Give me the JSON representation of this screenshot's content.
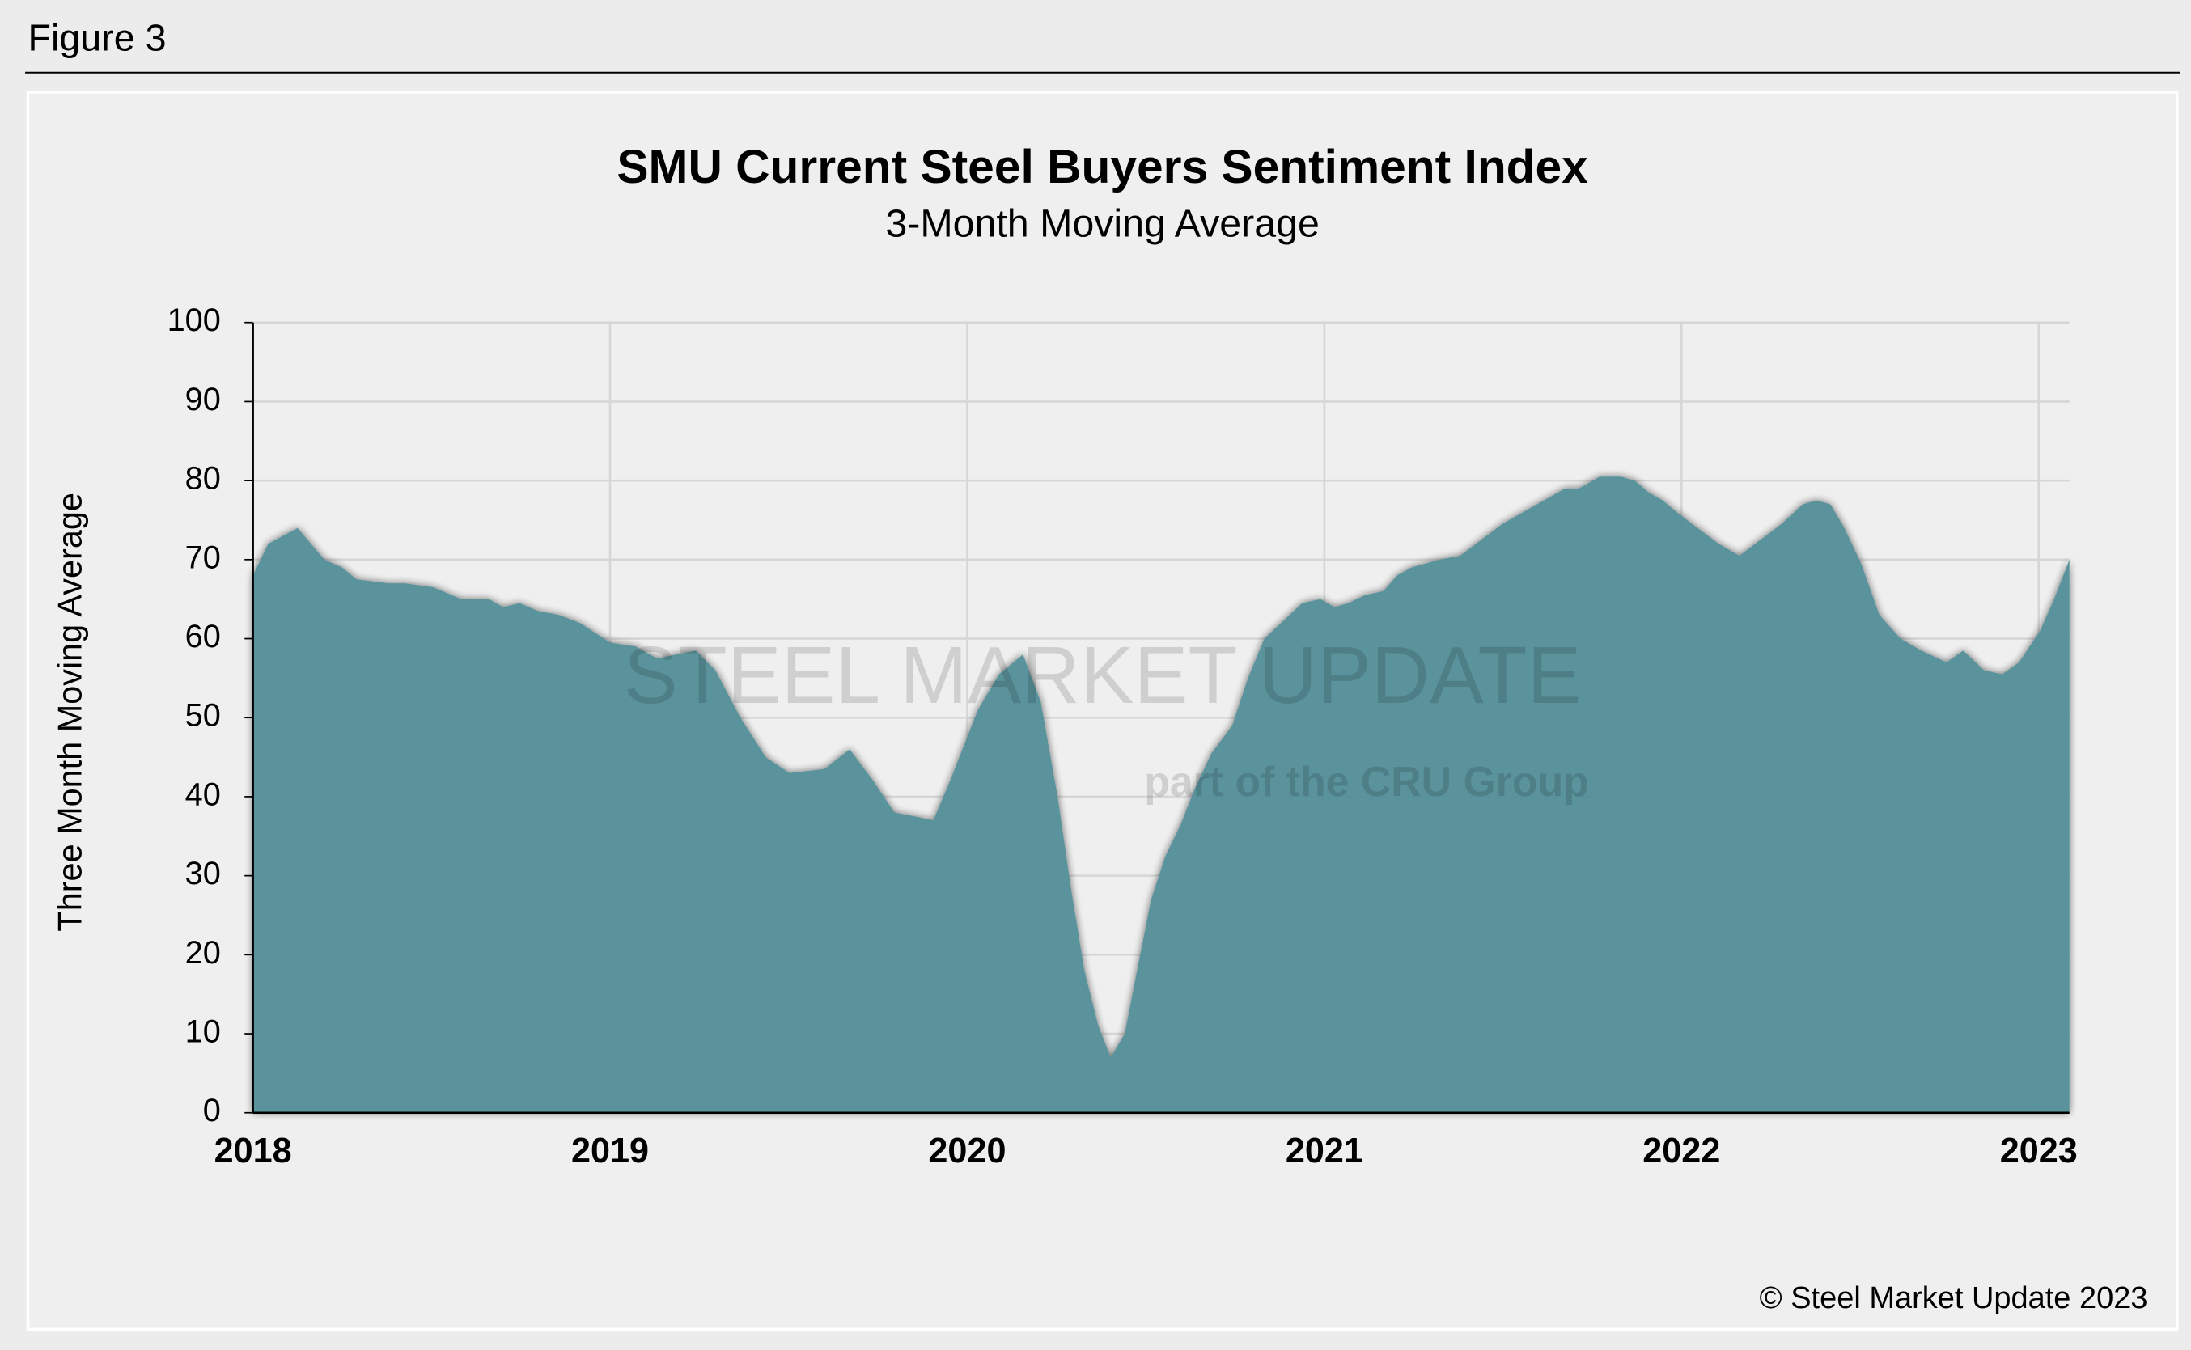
{
  "figure_label": "Figure 3",
  "chart_data": {
    "type": "area",
    "title": "SMU Current Steel Buyers Sentiment Index",
    "subtitle": "3-Month Moving Average",
    "ylabel": "Three Month Moving Average",
    "note": "© Steel Market Update 2023",
    "watermark": "STEEL MARKET UPDATE",
    "watermark_sub": "part of the CRU Group",
    "color": "#528f98",
    "grid": true,
    "xlim": [
      2018,
      2023.086
    ],
    "xticks": [
      2018,
      2019,
      2020,
      2021,
      2022,
      2023
    ],
    "ylim": [
      0,
      100
    ],
    "yticks": [
      0,
      10,
      20,
      30,
      40,
      50,
      60,
      70,
      80,
      90,
      100
    ],
    "x": [
      2018.0,
      2018.043,
      2018.125,
      2018.2,
      2018.25,
      2018.29,
      2018.379,
      2018.426,
      2018.505,
      2018.583,
      2018.661,
      2018.7,
      2018.747,
      2018.798,
      2018.857,
      2018.915,
      2019.0,
      2019.072,
      2019.131,
      2019.24,
      2019.295,
      2019.365,
      2019.436,
      2019.502,
      2019.6,
      2019.671,
      2019.737,
      2019.796,
      2019.854,
      2019.905,
      2019.952,
      2020.03,
      2020.089,
      2020.156,
      2020.206,
      2020.253,
      2020.292,
      2020.328,
      2020.367,
      2020.402,
      2020.441,
      2020.48,
      2020.515,
      2020.555,
      2020.598,
      2020.637,
      2020.684,
      2020.742,
      2020.786,
      2020.832,
      2020.891,
      2020.938,
      2020.989,
      2021.028,
      2021.067,
      2021.114,
      2021.165,
      2021.204,
      2021.243,
      2021.322,
      2021.38,
      2021.439,
      2021.498,
      2021.556,
      2021.615,
      2021.674,
      2021.713,
      2021.771,
      2021.83,
      2021.869,
      2021.908,
      2021.947,
      2021.987,
      2022.045,
      2022.104,
      2022.162,
      2022.221,
      2022.28,
      2022.339,
      2022.378,
      2022.417,
      2022.456,
      2022.503,
      2022.554,
      2022.613,
      2022.671,
      2022.742,
      2022.789,
      2022.847,
      2022.898,
      2022.945,
      2023.004,
      2023.043,
      2023.086
    ],
    "values": [
      68,
      72,
      74,
      70,
      69,
      67.5,
      67,
      67,
      66.5,
      65,
      65,
      64,
      64.5,
      63.5,
      63,
      62,
      59.5,
      59,
      57.5,
      58.5,
      56,
      50,
      45,
      43,
      43.5,
      46,
      42,
      38,
      37.5,
      37,
      42,
      51,
      55.5,
      58,
      52,
      40,
      28,
      18,
      11,
      7,
      10,
      19,
      27,
      32.5,
      36.5,
      41,
      45.5,
      49,
      55,
      60,
      62.5,
      64.5,
      65,
      64,
      64.5,
      65.5,
      66,
      68,
      69,
      70,
      70.5,
      72.5,
      74.5,
      76,
      77.5,
      79,
      79,
      80.5,
      80.5,
      80,
      78.5,
      77.5,
      76,
      74,
      72,
      70.5,
      72.5,
      74.5,
      77,
      77.5,
      77,
      74,
      69.5,
      63,
      60,
      58.5,
      57,
      58.5,
      56,
      55.5,
      57,
      61,
      65,
      70
    ]
  }
}
